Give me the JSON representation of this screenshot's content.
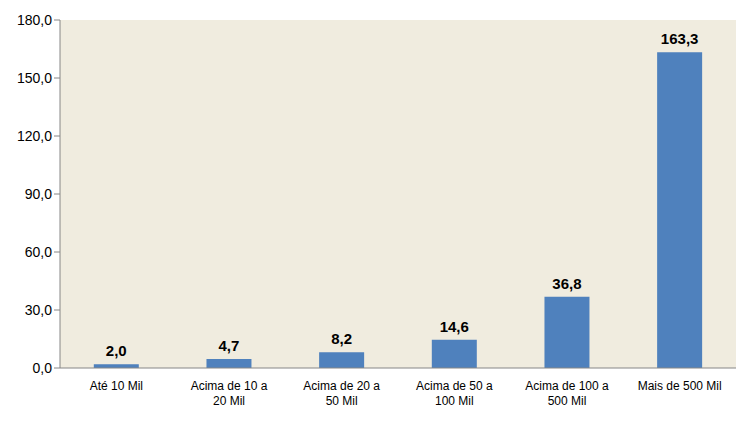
{
  "chart_data": {
    "type": "bar",
    "categories": [
      "Até 10 Mil",
      "Acima de 10 a 20 Mil",
      "Acima de 20 a 50 Mil",
      "Acima de 50 a 100 Mil",
      "Acima de 100 a 500 Mil",
      "Mais de 500 Mil"
    ],
    "values": [
      2.0,
      4.7,
      8.2,
      14.6,
      36.8,
      163.3
    ],
    "value_labels": [
      "2,0",
      "4,7",
      "8,2",
      "14,6",
      "36,8",
      "163,3"
    ],
    "data_labels": true,
    "color": "#4f81bd",
    "ylim": [
      0,
      180
    ],
    "yticks": [
      {
        "value": 0,
        "label": "0,0"
      },
      {
        "value": 30,
        "label": "30,0"
      },
      {
        "value": 60,
        "label": "60,0"
      },
      {
        "value": 90,
        "label": "90,0"
      },
      {
        "value": 120,
        "label": "120,0"
      },
      {
        "value": 150,
        "label": "150,0"
      },
      {
        "value": 180,
        "label": "180,0"
      }
    ],
    "grid": false
  }
}
